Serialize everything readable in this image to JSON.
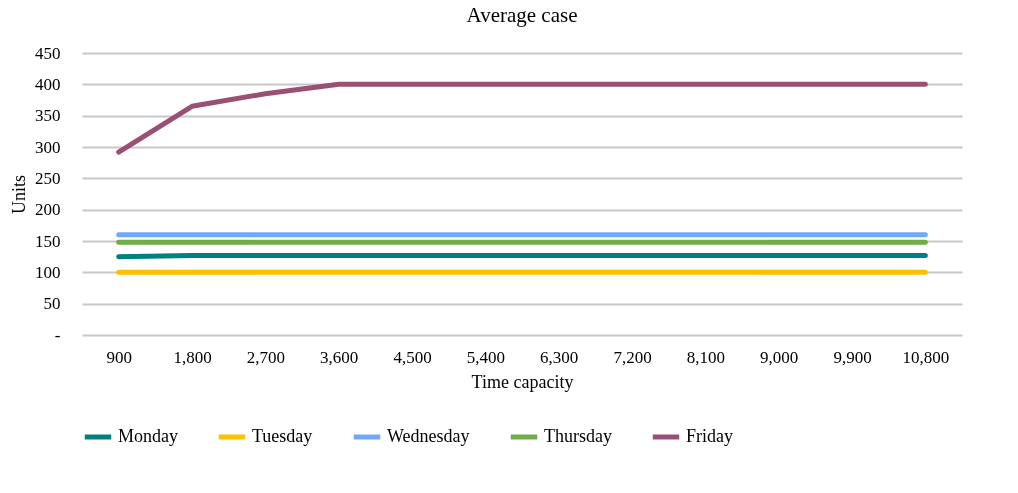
{
  "chart_data": {
    "type": "line",
    "title": "Average case",
    "xlabel": "Time capacity",
    "ylabel": "Units",
    "categories": [
      "900",
      "1,800",
      "2,700",
      "3,600",
      "4,500",
      "5,400",
      "6,300",
      "7,200",
      "8,100",
      "9,000",
      "9,900",
      "10,800"
    ],
    "series": [
      {
        "name": "Monday",
        "color": "#007f7f",
        "values": [
          125,
          127,
          127,
          127,
          127,
          127,
          127,
          127,
          127,
          127,
          127,
          127
        ]
      },
      {
        "name": "Tuesday",
        "color": "#ffc000",
        "values": [
          100,
          100,
          100,
          100,
          100,
          100,
          100,
          100,
          100,
          100,
          100,
          100
        ]
      },
      {
        "name": "Wednesday",
        "color": "#70a8ff",
        "values": [
          160,
          160,
          160,
          160,
          160,
          160,
          160,
          160,
          160,
          160,
          160,
          160
        ]
      },
      {
        "name": "Thursday",
        "color": "#70ad47",
        "values": [
          148,
          148,
          148,
          148,
          148,
          148,
          148,
          148,
          148,
          148,
          148,
          148
        ]
      },
      {
        "name": "Friday",
        "color": "#9a4f74",
        "values": [
          292,
          365,
          385,
          400,
          400,
          400,
          400,
          400,
          400,
          400,
          400,
          400
        ]
      }
    ],
    "ylim": [
      0,
      450
    ],
    "yticks": [
      {
        "value": 0,
        "label": "-"
      },
      50,
      100,
      150,
      200,
      250,
      300,
      350,
      400,
      450
    ],
    "grid": "y",
    "legend": "bottom",
    "marker": "none",
    "line_style": "solid"
  }
}
